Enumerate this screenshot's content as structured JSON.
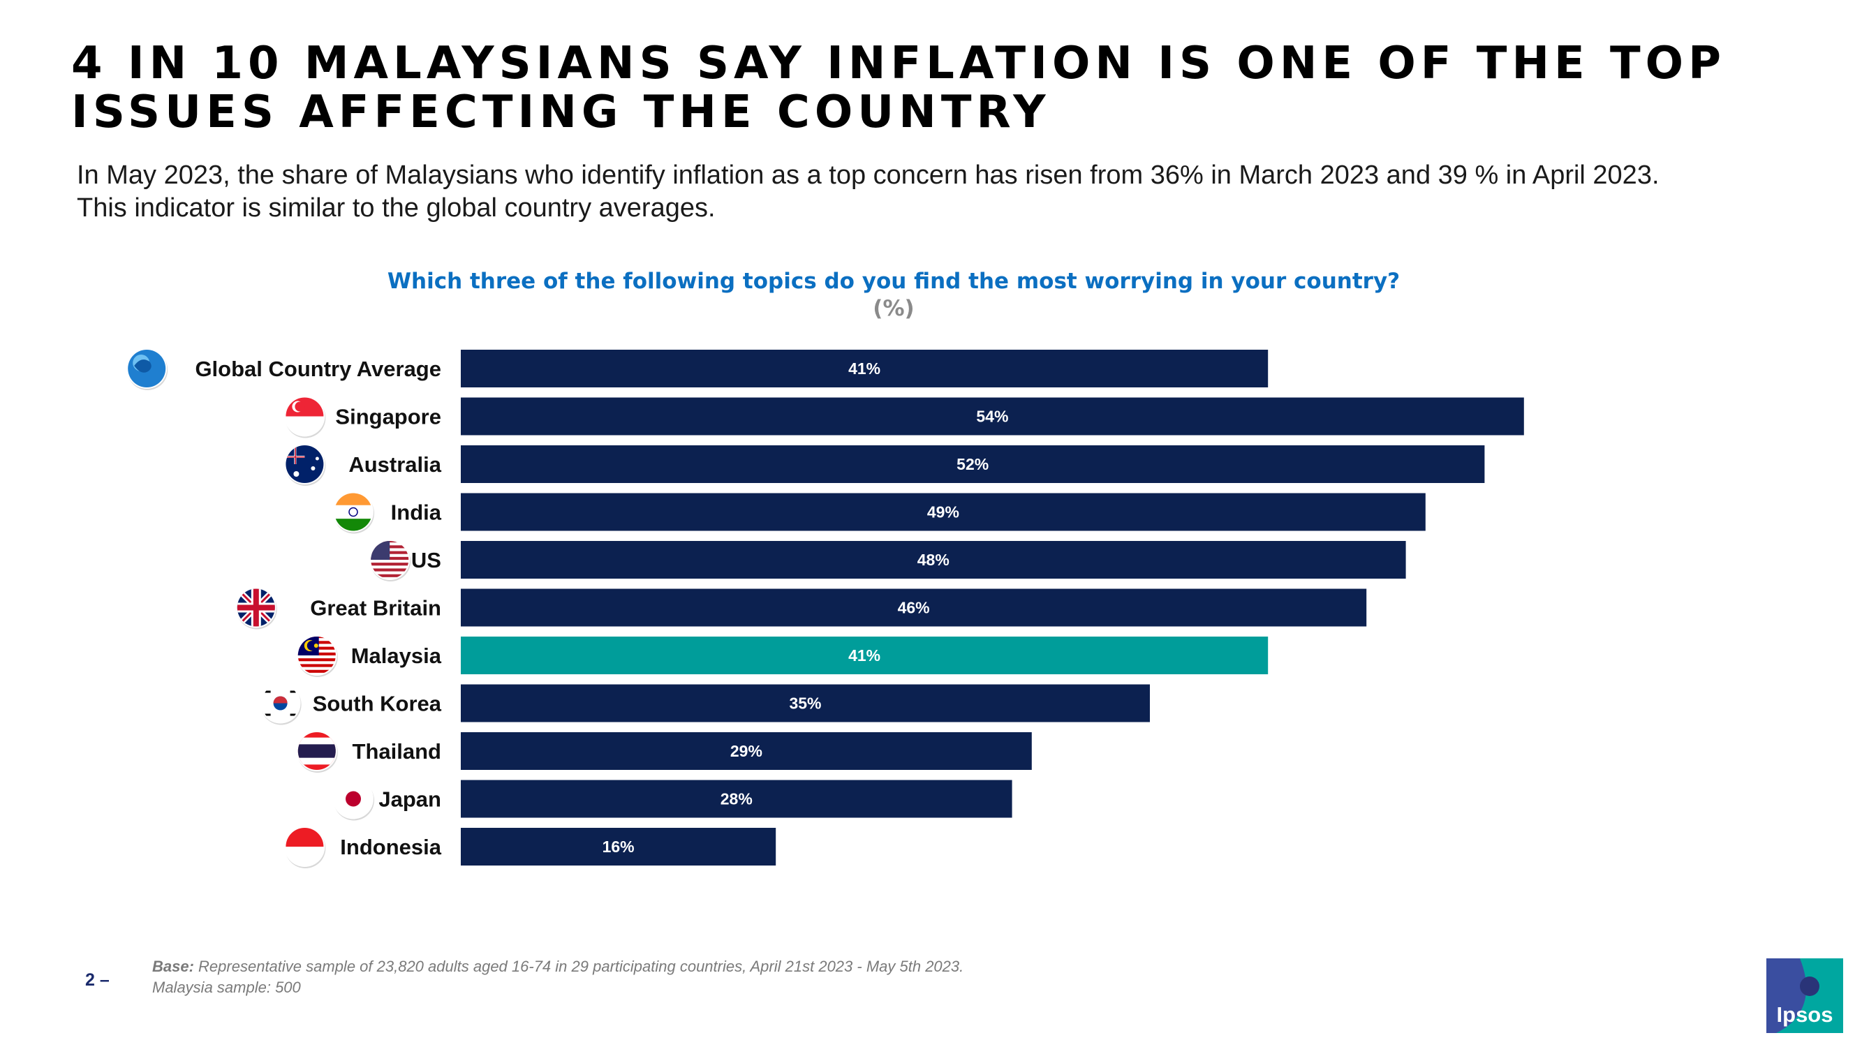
{
  "title": {
    "line1": "4 IN 10 MALAYSIANS SAY INFLATION IS ONE OF THE TOP",
    "line2": "ISSUES AFFECTING THE COUNTRY"
  },
  "subtitle": {
    "line1": "In May 2023, the share of Malaysians who identify inflation as a top concern has risen from 36% in March 2023 and 39 % in April 2023.",
    "line2": "This indicator is similar to the global country averages."
  },
  "colors": {
    "bar_default": "#0c2150",
    "bar_highlight": "#009d9a",
    "question": "#0b6fc1",
    "logo_blue": "#3a4ea0",
    "logo_teal": "#00a7a0"
  },
  "chart_data": {
    "type": "bar",
    "orientation": "horizontal",
    "title": "Which three of the following topics do you find the most worrying in your country?",
    "unit_label": "(%)",
    "xlim": [
      0,
      100
    ],
    "highlight": "Malaysia",
    "categories": [
      "Global Country Average",
      "Singapore",
      "Australia",
      "India",
      "US",
      "Great Britain",
      "Malaysia",
      "South Korea",
      "Thailand",
      "Japan",
      "Indonesia"
    ],
    "values": [
      41,
      54,
      52,
      49,
      48,
      46,
      41,
      35,
      29,
      28,
      16
    ],
    "value_labels": [
      "41%",
      "54%",
      "52%",
      "49%",
      "48%",
      "46%",
      "41%",
      "35%",
      "29%",
      "28%",
      "16%"
    ],
    "icons": [
      "globe-icon",
      "flag-singapore-icon",
      "flag-australia-icon",
      "flag-india-icon",
      "flag-us-icon",
      "flag-great-britain-icon",
      "flag-malaysia-icon",
      "flag-south-korea-icon",
      "flag-thailand-icon",
      "flag-japan-icon",
      "flag-indonesia-icon"
    ]
  },
  "footer": {
    "page_number": "2 –",
    "base_label": "Base:",
    "base_text": "Representative sample of 23,820 adults aged 16-74 in 29 participating countries, April 21st 2023 - May 5th 2023.",
    "sample_text": "Malaysia sample: 500"
  },
  "logo": {
    "text": "Ipsos"
  }
}
